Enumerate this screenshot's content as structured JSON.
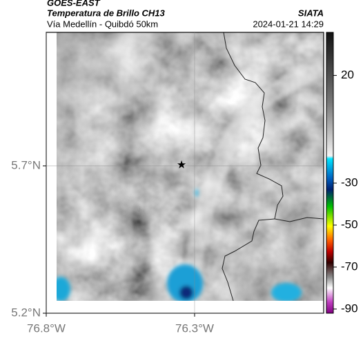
{
  "header": {
    "satellite": "GOES-EAST",
    "product": "Temperatura de Brillo CH13",
    "route": "Vía Medellín - Quibdó 50km",
    "source": "SIATA",
    "timestamp": "2024-01-21 14:29"
  },
  "map": {
    "xlim": [
      -76.8,
      -75.865
    ],
    "ylim": [
      5.2,
      6.153
    ],
    "xticks": [
      {
        "value": -76.8,
        "label": "76.8°W"
      },
      {
        "value": -76.3,
        "label": "76.3°W"
      }
    ],
    "yticks": [
      {
        "value": 5.2,
        "label": "5.2°N"
      },
      {
        "value": 5.7,
        "label": "5.7°N"
      }
    ],
    "grid": true,
    "markers": [
      {
        "lon": -76.344,
        "lat": 5.701
      }
    ]
  },
  "colorbar": {
    "lim": [
      -92,
      40
    ],
    "scale_break": -30,
    "ticks": [
      20,
      -30,
      -50,
      -70,
      -90
    ]
  }
}
